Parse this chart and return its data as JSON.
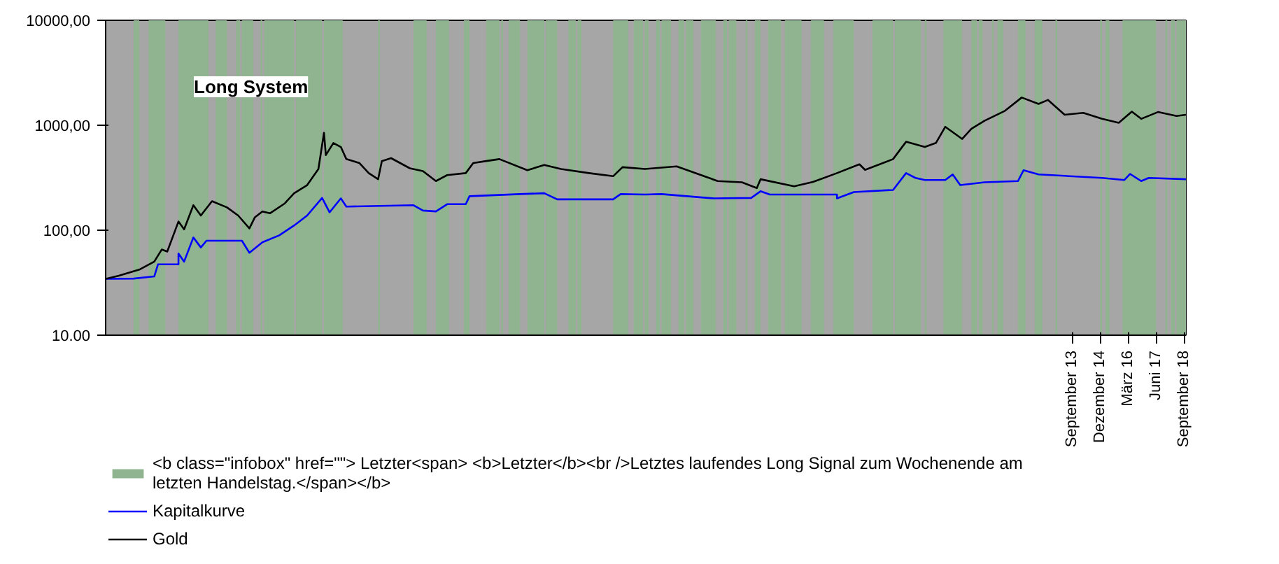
{
  "chart_data": {
    "type": "line",
    "title": "Long System",
    "log": "y",
    "legend": "bottom left",
    "xlim": [
      "1970-07",
      "2018-10"
    ],
    "xticks": [
      {
        "value": "2013-09",
        "label": "September 13"
      },
      {
        "value": "2014-12",
        "label": "Dezember 14"
      },
      {
        "value": "2016-03",
        "label": "März 16"
      },
      {
        "value": "2017-06",
        "label": "Juni 17"
      },
      {
        "value": "2018-09",
        "label": "September 18"
      }
    ],
    "ylim": [
      10,
      10000
    ],
    "yticks": [
      {
        "value": 10,
        "label": "10.00"
      },
      {
        "value": 100,
        "label": "100,00"
      },
      {
        "value": 1000,
        "label": "1000,00"
      },
      {
        "value": 10000,
        "label": "10000,00"
      }
    ],
    "bands": [
      {
        "axis": "x",
        "from": "1971-10",
        "to": "1972-01",
        "color": "#8fb48f",
        "label": "<b class=\"infobox\" href=\"\"> Letzter<span> <b>Letzter</b><br />Letztes laufendes Long Signal zum Wochenende am letzten Handelstag.</span></b>"
      },
      {
        "axis": "x",
        "from": "1972-06",
        "to": "1973-03",
        "color": "#8fb48f"
      },
      {
        "axis": "x",
        "from": "1973-10",
        "to": "1975-02",
        "color": "#8fb48f"
      },
      {
        "axis": "x",
        "from": "1975-06",
        "to": "1975-12",
        "color": "#8fb48f"
      },
      {
        "axis": "x",
        "from": "1976-05",
        "to": "1976-07",
        "color": "#8fb48f"
      },
      {
        "axis": "x",
        "from": "1976-08",
        "to": "1977-02",
        "color": "#8fb48f"
      },
      {
        "axis": "x",
        "from": "1977-06",
        "to": "1977-07",
        "color": "#8fb48f"
      },
      {
        "axis": "x",
        "from": "1977-08",
        "to": "1978-12",
        "color": "#8fb48f"
      },
      {
        "axis": "x",
        "from": "1979-01",
        "to": "1980-03",
        "color": "#8fb48f"
      },
      {
        "axis": "x",
        "from": "1980-04",
        "to": "1981-02",
        "color": "#8fb48f"
      },
      {
        "axis": "x",
        "from": "1982-09",
        "to": "1982-10",
        "color": "#8fb48f"
      },
      {
        "axis": "x",
        "from": "1984-04",
        "to": "1984-11",
        "color": "#8fb48f"
      },
      {
        "axis": "x",
        "from": "1985-04",
        "to": "1985-11",
        "color": "#8fb48f"
      },
      {
        "axis": "x",
        "from": "1986-07",
        "to": "1986-10",
        "color": "#8fb48f"
      },
      {
        "axis": "x",
        "from": "1987-07",
        "to": "1988-02",
        "color": "#8fb48f"
      },
      {
        "axis": "x",
        "from": "1988-03",
        "to": "1988-04",
        "color": "#8fb48f"
      },
      {
        "axis": "x",
        "from": "1988-07",
        "to": "1989-01",
        "color": "#8fb48f"
      },
      {
        "axis": "x",
        "from": "1989-05",
        "to": "1990-02",
        "color": "#8fb48f"
      },
      {
        "axis": "x",
        "from": "1990-03",
        "to": "1990-09",
        "color": "#8fb48f"
      },
      {
        "axis": "x",
        "from": "1991-03",
        "to": "1991-07",
        "color": "#8fb48f"
      },
      {
        "axis": "x",
        "from": "1991-08",
        "to": "1991-10",
        "color": "#8fb48f"
      },
      {
        "axis": "x",
        "from": "1993-03",
        "to": "1993-11",
        "color": "#8fb48f"
      },
      {
        "axis": "x",
        "from": "1994-02",
        "to": "1994-07",
        "color": "#8fb48f"
      },
      {
        "axis": "x",
        "from": "1994-08",
        "to": "1994-10",
        "color": "#8fb48f"
      },
      {
        "axis": "x",
        "from": "1995-02",
        "to": "1995-04",
        "color": "#8fb48f"
      },
      {
        "axis": "x",
        "from": "1995-05",
        "to": "1995-10",
        "color": "#8fb48f"
      },
      {
        "axis": "x",
        "from": "1996-02",
        "to": "1996-05",
        "color": "#8fb48f"
      },
      {
        "axis": "x",
        "from": "1996-06",
        "to": "1996-10",
        "color": "#8fb48f"
      },
      {
        "axis": "x",
        "from": "1997-02",
        "to": "1997-10",
        "color": "#8fb48f"
      },
      {
        "axis": "x",
        "from": "1998-02",
        "to": "1998-04",
        "color": "#8fb48f"
      },
      {
        "axis": "x",
        "from": "1998-05",
        "to": "1998-09",
        "color": "#8fb48f"
      },
      {
        "axis": "x",
        "from": "1999-02",
        "to": "1999-03",
        "color": "#8fb48f"
      },
      {
        "axis": "x",
        "from": "1999-07",
        "to": "1999-10",
        "color": "#8fb48f"
      },
      {
        "axis": "x",
        "from": "2000-02",
        "to": "2000-09",
        "color": "#8fb48f"
      },
      {
        "axis": "x",
        "from": "2000-11",
        "to": "2001-08",
        "color": "#8fb48f"
      },
      {
        "axis": "x",
        "from": "2002-01",
        "to": "2002-08",
        "color": "#8fb48f"
      },
      {
        "axis": "x",
        "from": "2003-01",
        "to": "2003-12",
        "color": "#8fb48f"
      },
      {
        "axis": "x",
        "from": "2004-10",
        "to": "2005-09",
        "color": "#8fb48f"
      },
      {
        "axis": "x",
        "from": "2005-10",
        "to": "2006-12",
        "color": "#8fb48f"
      },
      {
        "axis": "x",
        "from": "2007-02",
        "to": "2007-03",
        "color": "#8fb48f"
      },
      {
        "axis": "x",
        "from": "2007-12",
        "to": "2008-10",
        "color": "#8fb48f"
      },
      {
        "axis": "x",
        "from": "2009-03",
        "to": "2009-06",
        "color": "#8fb48f"
      },
      {
        "axis": "x",
        "from": "2009-07",
        "to": "2009-09",
        "color": "#8fb48f"
      },
      {
        "axis": "x",
        "from": "2010-02",
        "to": "2010-03",
        "color": "#8fb48f"
      },
      {
        "axis": "x",
        "from": "2010-05",
        "to": "2010-08",
        "color": "#8fb48f"
      },
      {
        "axis": "x",
        "from": "2011-04",
        "to": "2011-08",
        "color": "#8fb48f"
      },
      {
        "axis": "x",
        "from": "2012-01",
        "to": "2012-05",
        "color": "#8fb48f"
      },
      {
        "axis": "x",
        "from": "2012-12",
        "to": "2013-01",
        "color": "#8fb48f"
      },
      {
        "axis": "x",
        "from": "2014-12",
        "to": "2015-01",
        "color": "#8fb48f"
      },
      {
        "axis": "x",
        "from": "2015-03",
        "to": "2015-05",
        "color": "#8fb48f"
      },
      {
        "axis": "x",
        "from": "2015-12",
        "to": "2017-06",
        "color": "#8fb48f"
      },
      {
        "axis": "x",
        "from": "2017-11",
        "to": "2017-12",
        "color": "#8fb48f"
      },
      {
        "axis": "x",
        "from": "2018-02",
        "to": "2018-04",
        "color": "#8fb48f"
      },
      {
        "axis": "x",
        "from": "2018-05",
        "to": "2018-10",
        "color": "#8fb48f"
      }
    ],
    "series": [
      {
        "name": "Kapitalkurve",
        "color": "#0000ff",
        "x": [
          "1970-07",
          "1971-10",
          "1972-09",
          "1972-11",
          "1973-10",
          "1973-10",
          "1974-01",
          "1974-06",
          "1974-10",
          "1975-01",
          "1976-08",
          "1976-12",
          "1977-07",
          "1978-04",
          "1978-12",
          "1979-07",
          "1980-03",
          "1980-07",
          "1981-01",
          "1981-04",
          "1984-04",
          "1984-09",
          "1985-04",
          "1985-10",
          "1986-08",
          "1986-10",
          "1989-01",
          "1990-02",
          "1990-09",
          "1993-03",
          "1993-07",
          "1994-08",
          "1995-05",
          "1997-09",
          "1999-05",
          "1999-10",
          "2000-03",
          "2003-03",
          "2003-03",
          "2003-12",
          "2005-09",
          "2006-04",
          "2006-09",
          "2007-02",
          "2008-01",
          "2008-05",
          "2008-09",
          "2009-10",
          "2011-04",
          "2011-07",
          "2012-03",
          "2015-01",
          "2016-01",
          "2016-04",
          "2016-10",
          "2017-02",
          "2018-10"
        ],
        "values": [
          34.4,
          34.6,
          36.3,
          47.3,
          47.3,
          60,
          50.2,
          85.3,
          68.5,
          79.4,
          79.4,
          61,
          76.7,
          89.3,
          111,
          138,
          203,
          148,
          201,
          168,
          173,
          154,
          151,
          177,
          177,
          211,
          221,
          225,
          197,
          197,
          221,
          219,
          221,
          201,
          203,
          235,
          219,
          219,
          201,
          231,
          242,
          350,
          315,
          301,
          301,
          340,
          269,
          286,
          294,
          373,
          340,
          315,
          301,
          344,
          294,
          315,
          306
        ]
      },
      {
        "name": "Gold",
        "color": "#000000",
        "x": [
          "1970-07",
          "1971-02",
          "1972-01",
          "1972-09",
          "1973-01",
          "1973-04",
          "1973-10",
          "1974-01",
          "1974-06",
          "1974-10",
          "1975-04",
          "1975-12",
          "1976-06",
          "1976-12",
          "1977-03",
          "1977-07",
          "1977-11",
          "1978-07",
          "1978-12",
          "1979-07",
          "1980-01",
          "1980-04",
          "1980-05",
          "1980-09",
          "1981-01",
          "1981-04",
          "1981-11",
          "1982-04",
          "1982-09",
          "1982-11",
          "1983-04",
          "1984-02",
          "1984-09",
          "1985-04",
          "1985-10",
          "1986-08",
          "1986-12",
          "1987-07",
          "1988-02",
          "1989-05",
          "1990-02",
          "1990-11",
          "1992-02",
          "1993-03",
          "1993-08",
          "1994-08",
          "1996-01",
          "1997-11",
          "1998-12",
          "1999-08",
          "1999-10",
          "2001-04",
          "2002-02",
          "2003-03",
          "2004-03",
          "2004-06",
          "2005-09",
          "2006-04",
          "2007-02",
          "2007-08",
          "2008-01",
          "2008-10",
          "2009-03",
          "2009-10",
          "2010-09",
          "2011-06",
          "2012-03",
          "2012-08",
          "2013-05",
          "2014-03",
          "2015-01",
          "2015-10",
          "2016-05",
          "2016-10",
          "2017-07",
          "2018-05",
          "2018-10"
        ],
        "values": [
          34.4,
          36.9,
          42.1,
          50.2,
          65.5,
          62.6,
          121,
          102,
          173,
          138,
          189,
          165,
          138,
          104,
          133,
          151,
          145,
          180,
          225,
          269,
          383,
          848,
          520,
          678,
          621,
          476,
          436,
          350,
          306,
          456,
          486,
          389,
          366,
          294,
          335,
          350,
          436,
          456,
          476,
          373,
          418,
          383,
          350,
          327,
          399,
          383,
          406,
          294,
          286,
          252,
          306,
          262,
          288,
          350,
          425,
          376,
          476,
          696,
          621,
          678,
          967,
          741,
          925,
          1104,
          1374,
          1837,
          1596,
          1742,
          1259,
          1313,
          1151,
          1055,
          1349,
          1151,
          1337,
          1227,
          1259
        ]
      }
    ]
  }
}
